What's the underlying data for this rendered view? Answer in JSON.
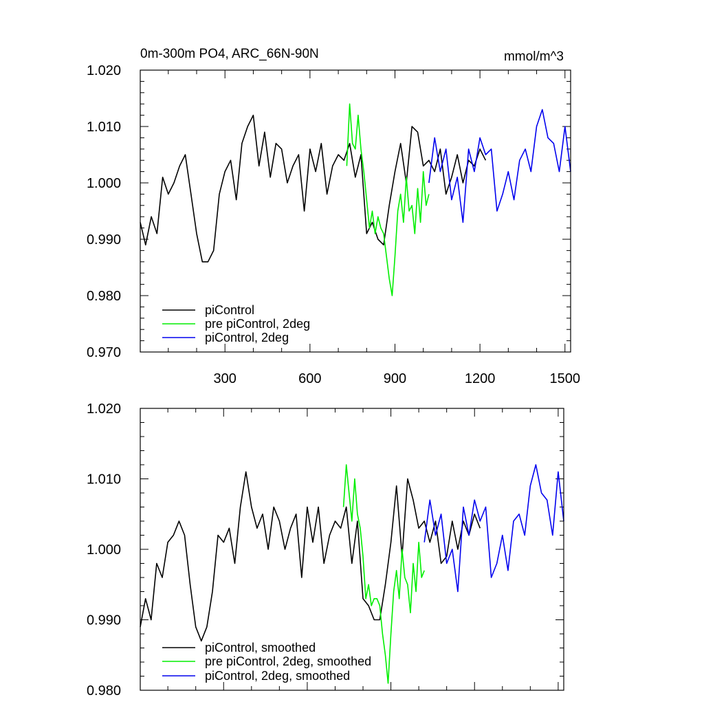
{
  "chart_data": [
    {
      "type": "line",
      "title": "0m-300m PO4, ARC_66N-90N",
      "units": "mmol/m^3",
      "xlim": [
        1,
        1520
      ],
      "ylim": [
        0.97,
        1.02
      ],
      "x_ticks": [
        300,
        600,
        900,
        1200,
        1500
      ],
      "x_tick_labels": [
        "300",
        "600",
        "900",
        "1200",
        "1500"
      ],
      "y_ticks": [
        0.97,
        0.98,
        0.99,
        1.0,
        1.01,
        1.02
      ],
      "y_tick_labels": [
        "0.970",
        "0.980",
        "0.990",
        "1.000",
        "1.010",
        "1.020"
      ],
      "legend_position": "bottom-left",
      "series": [
        {
          "name": "piControl",
          "color": "#000000",
          "x": [
            1,
            20,
            40,
            60,
            80,
            100,
            120,
            140,
            160,
            180,
            200,
            220,
            240,
            260,
            280,
            300,
            320,
            340,
            360,
            380,
            400,
            420,
            440,
            460,
            480,
            500,
            520,
            540,
            560,
            580,
            600,
            620,
            640,
            660,
            680,
            700,
            720,
            740,
            760,
            780,
            800,
            820,
            840,
            860,
            880,
            900,
            920,
            940,
            960,
            980,
            1000,
            1020,
            1040,
            1060,
            1080,
            1100,
            1120,
            1140,
            1160,
            1180,
            1200,
            1220
          ],
          "values": [
            0.993,
            0.989,
            0.994,
            0.991,
            1.001,
            0.998,
            1.0,
            1.003,
            1.005,
            0.998,
            0.991,
            0.986,
            0.986,
            0.988,
            0.998,
            1.002,
            1.004,
            0.997,
            1.007,
            1.01,
            1.012,
            1.003,
            1.009,
            1.001,
            1.007,
            1.006,
            1.0,
            1.003,
            1.005,
            0.995,
            1.006,
            1.002,
            1.007,
            0.998,
            1.003,
            1.005,
            1.004,
            1.007,
            1.001,
            1.005,
            0.991,
            0.993,
            0.99,
            0.989,
            0.996,
            1.002,
            1.007,
            1.0,
            1.01,
            1.009,
            1.003,
            1.004,
            1.002,
            1.006,
            0.998,
            1.001,
            1.005,
            1.0,
            1.004,
            1.003,
            1.006,
            1.004
          ]
        },
        {
          "name": "pre piControl, 2deg",
          "color": "#00ee00",
          "x": [
            730,
            740,
            750,
            760,
            770,
            780,
            790,
            800,
            810,
            820,
            830,
            840,
            850,
            860,
            870,
            880,
            890,
            900,
            910,
            920,
            930,
            940,
            950,
            960,
            970,
            980,
            990,
            1000,
            1010,
            1020
          ],
          "values": [
            1.003,
            1.014,
            1.007,
            1.006,
            1.012,
            1.006,
            1.002,
            0.997,
            0.992,
            0.995,
            0.991,
            0.994,
            0.992,
            0.991,
            0.987,
            0.983,
            0.98,
            0.987,
            0.995,
            0.998,
            0.993,
            1.001,
            0.995,
            0.996,
            0.991,
            0.999,
            0.993,
            1.002,
            0.996,
            0.998
          ]
        },
        {
          "name": "piControl, 2deg",
          "color": "#0000ee",
          "x": [
            1020,
            1040,
            1060,
            1080,
            1100,
            1120,
            1140,
            1160,
            1180,
            1200,
            1220,
            1240,
            1260,
            1280,
            1300,
            1320,
            1340,
            1360,
            1380,
            1400,
            1420,
            1440,
            1460,
            1480,
            1500,
            1520
          ],
          "values": [
            1.0,
            1.008,
            1.002,
            1.006,
            0.997,
            1.001,
            0.993,
            1.006,
            1.002,
            1.008,
            1.005,
            1.006,
            0.995,
            0.998,
            1.002,
            0.997,
            1.004,
            1.006,
            1.002,
            1.01,
            1.013,
            1.008,
            1.007,
            1.002,
            1.01,
            1.002
          ]
        }
      ]
    },
    {
      "type": "line",
      "xlim": [
        1,
        1520
      ],
      "ylim": [
        0.98,
        1.02
      ],
      "x_ticks": [
        300,
        600,
        900,
        1200,
        1500
      ],
      "y_ticks": [
        0.98,
        0.99,
        1.0,
        1.01,
        1.02
      ],
      "y_tick_labels": [
        "0.980",
        "0.990",
        "1.000",
        "1.010",
        "1.020"
      ],
      "legend_position": "bottom-left",
      "series": [
        {
          "name": "piControl, smoothed",
          "color": "#000000",
          "x": [
            1,
            20,
            40,
            60,
            80,
            100,
            120,
            140,
            160,
            180,
            200,
            220,
            240,
            260,
            280,
            300,
            320,
            340,
            360,
            380,
            400,
            420,
            440,
            460,
            480,
            500,
            520,
            540,
            560,
            580,
            600,
            620,
            640,
            660,
            680,
            700,
            720,
            740,
            760,
            780,
            800,
            820,
            840,
            860,
            880,
            900,
            920,
            940,
            960,
            980,
            1000,
            1020,
            1040,
            1060,
            1080,
            1100,
            1120,
            1140,
            1160,
            1180,
            1200,
            1220
          ],
          "values": [
            0.989,
            0.993,
            0.99,
            0.998,
            0.996,
            1.001,
            1.002,
            1.004,
            1.002,
            0.995,
            0.989,
            0.987,
            0.989,
            0.994,
            1.002,
            1.001,
            1.003,
            0.998,
            1.006,
            1.011,
            1.006,
            1.003,
            1.005,
            1.0,
            1.006,
            1.004,
            1.0,
            1.003,
            1.005,
            0.996,
            1.006,
            1.001,
            1.006,
            0.998,
            1.002,
            1.004,
            1.003,
            1.006,
            0.998,
            1.004,
            0.993,
            0.992,
            0.99,
            0.99,
            0.995,
            1.001,
            1.009,
            0.999,
            1.01,
            1.007,
            1.003,
            1.004,
            1.001,
            1.004,
            0.998,
            0.999,
            1.004,
            1.0,
            1.004,
            1.002,
            1.005,
            1.003
          ]
        },
        {
          "name": "pre piControl, 2deg, smoothed",
          "color": "#00ee00",
          "x": [
            730,
            740,
            750,
            760,
            770,
            780,
            790,
            800,
            810,
            820,
            830,
            840,
            850,
            860,
            870,
            880,
            890,
            900,
            910,
            920,
            930,
            940,
            950,
            960,
            970,
            980,
            990,
            1000,
            1010,
            1020
          ],
          "values": [
            1.006,
            1.012,
            1.008,
            1.004,
            1.01,
            1.005,
            1.003,
            0.999,
            0.993,
            0.995,
            0.992,
            0.993,
            0.993,
            0.992,
            0.988,
            0.985,
            0.981,
            0.988,
            0.994,
            0.997,
            0.993,
            1.0,
            0.996,
            0.995,
            0.991,
            0.998,
            0.994,
            1.001,
            0.996,
            0.997
          ]
        },
        {
          "name": "piControl, 2deg, smoothed",
          "color": "#0000ee",
          "x": [
            1020,
            1040,
            1060,
            1080,
            1100,
            1120,
            1140,
            1160,
            1180,
            1200,
            1220,
            1240,
            1260,
            1280,
            1300,
            1320,
            1340,
            1360,
            1380,
            1400,
            1420,
            1440,
            1460,
            1480,
            1500,
            1520
          ],
          "values": [
            1.001,
            1.007,
            1.002,
            1.005,
            0.998,
            1.0,
            0.994,
            1.006,
            1.002,
            1.007,
            1.004,
            1.006,
            0.996,
            0.998,
            1.002,
            0.997,
            1.004,
            1.005,
            1.002,
            1.009,
            1.012,
            1.008,
            1.007,
            1.002,
            1.011,
            1.004
          ]
        }
      ]
    }
  ]
}
